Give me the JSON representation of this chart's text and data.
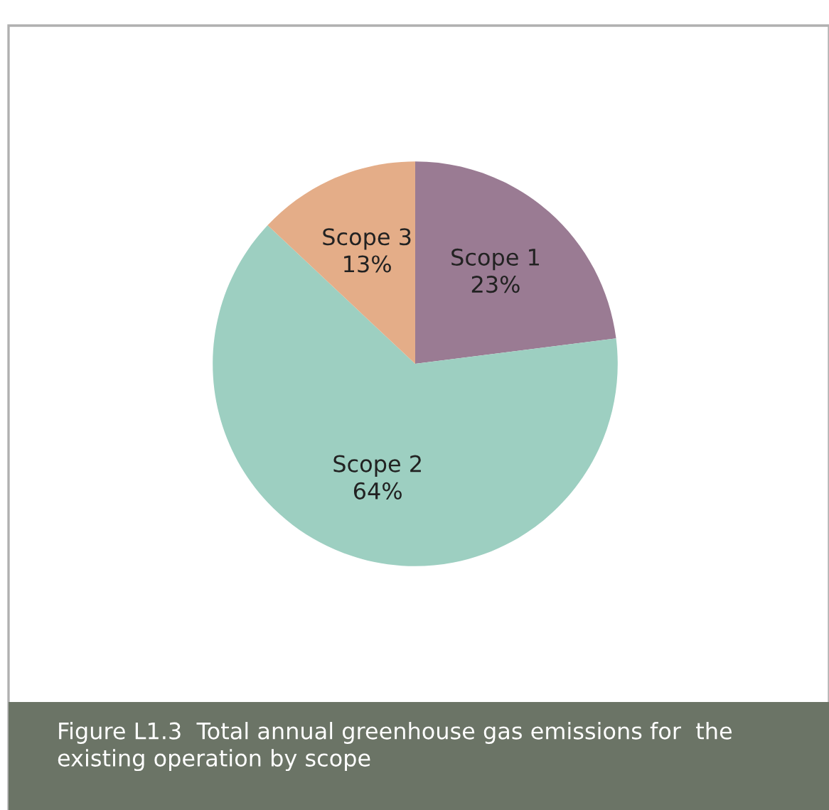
{
  "chart_data": {
    "type": "pie",
    "categories": [
      "Scope 1",
      "Scope 2",
      "Scope 3"
    ],
    "values": [
      23,
      64,
      13
    ],
    "value_labels": [
      "23%",
      "64%",
      "13%"
    ],
    "colors": [
      "#9a7b93",
      "#9dcfc1",
      "#e4ad88"
    ],
    "annotations": [
      "Figure L1.3  Total annual greenhouse gas emissions for  the existing operation by scope"
    ]
  }
}
